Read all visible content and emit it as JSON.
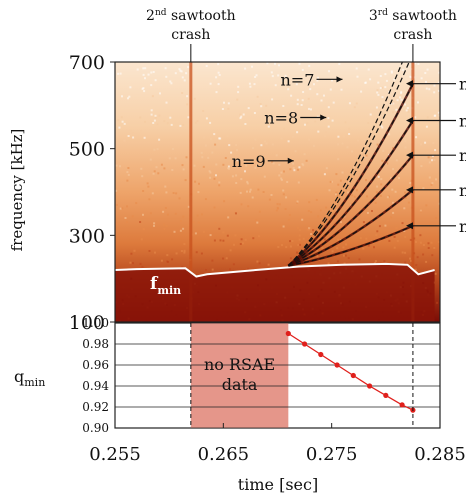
{
  "chart_data": [
    {
      "type": "heatmap",
      "ylabel": "frequency [kHz]",
      "ylim": [
        100,
        700
      ],
      "xlim": [
        0.255,
        0.285
      ],
      "yticks": [
        "100",
        "300",
        "500",
        "700"
      ],
      "colormap": [
        "#ffffff",
        "#f6caa0",
        "#e78a4a",
        "#c0461c",
        "#7a0c06"
      ],
      "sawtooth_crashes": [
        {
          "label_sup": "nd",
          "label_num": "2",
          "label_rest": "sawtooth",
          "label_line2": "crash",
          "time": 0.262
        },
        {
          "label_sup": "rd",
          "label_num": "3",
          "label_rest": "sawtooth",
          "label_line2": "crash",
          "time": 0.2825
        }
      ],
      "fmin_label": "f",
      "fmin_sub": "min",
      "fmin_curve": {
        "x": [
          0.255,
          0.257,
          0.2615,
          0.2625,
          0.2635,
          0.268,
          0.272,
          0.276,
          0.28,
          0.282,
          0.283,
          0.2845
        ],
        "y": [
          220,
          222,
          224,
          205,
          210,
          220,
          228,
          232,
          234,
          232,
          210,
          220
        ]
      },
      "mode_labels": [
        {
          "text": "n=7",
          "time": 0.276,
          "freq": 660
        },
        {
          "text": "n=8",
          "time": 0.2745,
          "freq": 572
        },
        {
          "text": "n=9",
          "time": 0.2715,
          "freq": 472
        }
      ],
      "right_labels": [
        "n",
        "n",
        "n",
        "n",
        "n"
      ],
      "right_arrow_freqs": [
        650,
        565,
        485,
        405,
        322
      ]
    },
    {
      "type": "line",
      "ylabel": "q",
      "ylabel_sub": "min",
      "xlabel": "time [sec]",
      "xlim": [
        0.255,
        0.285
      ],
      "ylim": [
        0.9,
        1.0
      ],
      "xticks": [
        "0.255",
        "0.265",
        "0.275",
        "0.285"
      ],
      "yticks": [
        "0.90",
        "0.92",
        "0.94",
        "0.96",
        "0.98",
        "1.00"
      ],
      "shaded_region": {
        "x": [
          0.262,
          0.271
        ],
        "label": [
          "no RSAE",
          "data"
        ],
        "color": "#e5968a"
      },
      "series": [
        {
          "x": [
            0.271,
            0.2725,
            0.274,
            0.2755,
            0.277,
            0.2785,
            0.28,
            0.2815,
            0.2825
          ],
          "y": [
            0.99,
            0.98,
            0.97,
            0.96,
            0.95,
            0.94,
            0.931,
            0.922,
            0.917
          ],
          "color": "#e0201c"
        }
      ],
      "grid": "horizontal"
    }
  ]
}
